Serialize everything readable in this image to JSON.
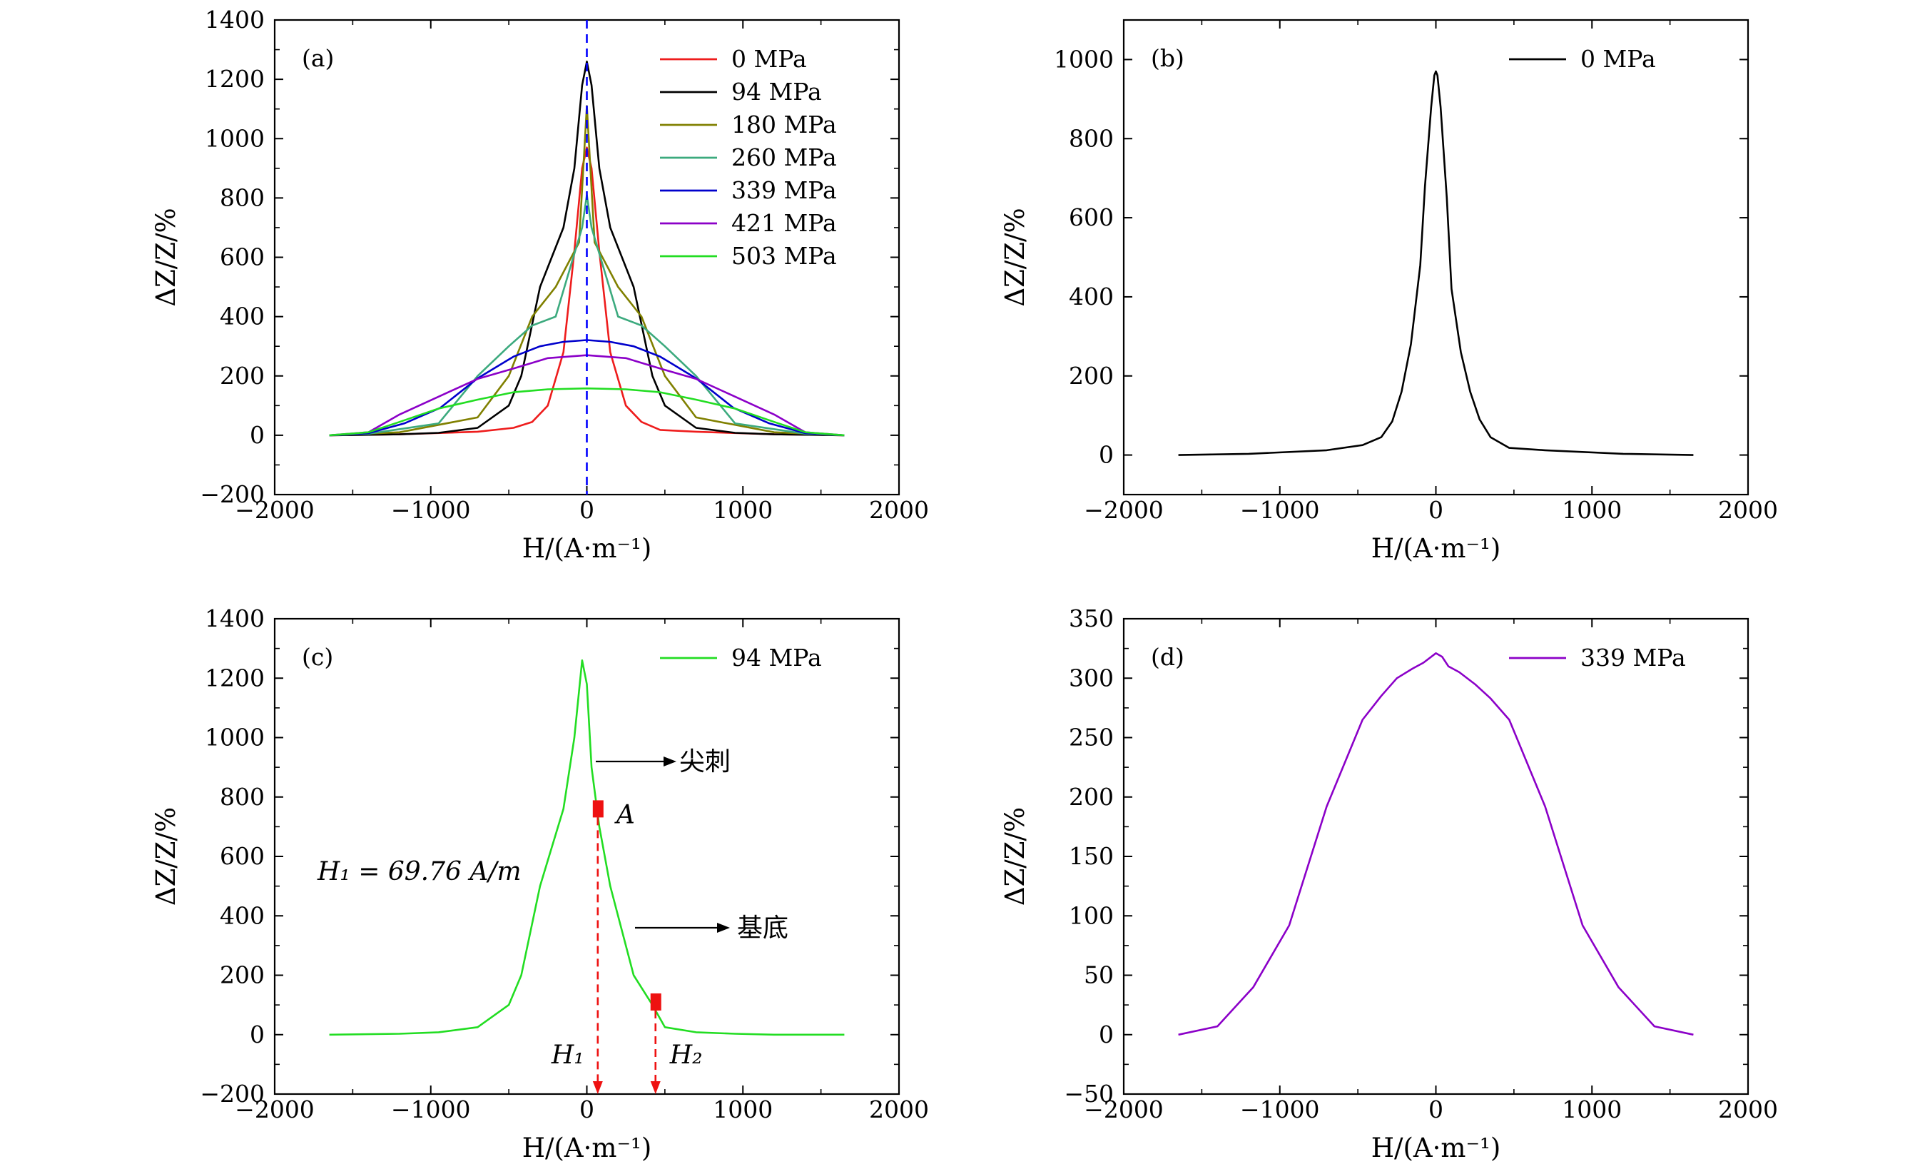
{
  "chart_data": [
    {
      "panel": "(a)",
      "type": "line",
      "xlabel": "H/(A·m⁻¹)",
      "ylabel": "ΔZ/Z/%",
      "xlim": [
        -2000,
        2000
      ],
      "ylim": [
        -200,
        1400
      ],
      "xticks": [
        -2000,
        -1000,
        0,
        1000,
        2000
      ],
      "yticks": [
        -200,
        0,
        200,
        400,
        600,
        800,
        1000,
        1200,
        1400
      ],
      "legend_position": "top-right",
      "vline": {
        "x": 0,
        "color": "#0000ff",
        "style": "dashed"
      },
      "series": [
        {
          "name": "0 MPa",
          "color": "#ee1c1c",
          "x": [
            -1650,
            -1200,
            -700,
            -470,
            -350,
            -250,
            -150,
            -80,
            -30,
            0,
            30,
            80,
            150,
            250,
            350,
            470,
            700,
            1200,
            1650
          ],
          "y": [
            0,
            3,
            12,
            25,
            45,
            100,
            280,
            620,
            900,
            970,
            900,
            620,
            280,
            100,
            45,
            18,
            12,
            3,
            0
          ]
        },
        {
          "name": "94 MPa",
          "color": "#000000",
          "x": [
            -1650,
            -1200,
            -950,
            -700,
            -500,
            -420,
            -300,
            -150,
            -80,
            -30,
            0,
            30,
            80,
            150,
            300,
            420,
            500,
            700,
            950,
            1200,
            1650
          ],
          "y": [
            0,
            3,
            8,
            25,
            100,
            200,
            500,
            700,
            900,
            1180,
            1260,
            1180,
            900,
            700,
            500,
            200,
            100,
            25,
            8,
            3,
            0
          ]
        },
        {
          "name": "180 MPa",
          "color": "#808000",
          "x": [
            -1650,
            -1200,
            -700,
            -500,
            -350,
            -200,
            -50,
            0,
            50,
            200,
            350,
            500,
            700,
            1200,
            1650
          ],
          "y": [
            0,
            10,
            60,
            200,
            400,
            500,
            650,
            1110,
            650,
            500,
            400,
            200,
            60,
            10,
            0
          ]
        },
        {
          "name": "260 MPa",
          "color": "#3caa7e",
          "x": [
            -1650,
            -1400,
            -950,
            -700,
            -500,
            -350,
            -200,
            -30,
            0,
            30,
            200,
            350,
            500,
            700,
            950,
            1400,
            1650
          ],
          "y": [
            0,
            5,
            40,
            200,
            300,
            370,
            400,
            700,
            810,
            700,
            400,
            370,
            300,
            200,
            40,
            5,
            0
          ]
        },
        {
          "name": "339 MPa",
          "color": "#0000cc",
          "x": [
            -1650,
            -1400,
            -1170,
            -940,
            -700,
            -470,
            -300,
            -150,
            0,
            150,
            300,
            470,
            700,
            940,
            1170,
            1400,
            1650
          ],
          "y": [
            0,
            7,
            40,
            92,
            192,
            265,
            300,
            315,
            321,
            315,
            300,
            265,
            192,
            92,
            40,
            7,
            0
          ]
        },
        {
          "name": "421 MPa",
          "color": "#8b00c8",
          "x": [
            -1650,
            -1400,
            -1200,
            -950,
            -700,
            -470,
            -250,
            0,
            250,
            470,
            700,
            950,
            1200,
            1400,
            1650
          ],
          "y": [
            0,
            10,
            70,
            130,
            190,
            225,
            260,
            270,
            260,
            225,
            190,
            130,
            70,
            10,
            0
          ]
        },
        {
          "name": "503 MPa",
          "color": "#22dd22",
          "x": [
            -1650,
            -1400,
            -1200,
            -950,
            -700,
            -470,
            -250,
            0,
            250,
            470,
            700,
            950,
            1200,
            1400,
            1650
          ],
          "y": [
            0,
            10,
            45,
            90,
            120,
            145,
            155,
            158,
            155,
            145,
            120,
            90,
            45,
            10,
            0
          ]
        }
      ]
    },
    {
      "panel": "(b)",
      "type": "line",
      "xlabel": "H/(A·m⁻¹)",
      "ylabel": "ΔZ/Z/%",
      "xlim": [
        -2000,
        2000
      ],
      "ylim": [
        -100,
        1100
      ],
      "xticks": [
        -2000,
        -1000,
        0,
        1000,
        2000
      ],
      "yticks": [
        0,
        200,
        400,
        600,
        800,
        1000
      ],
      "legend_position": "top-right",
      "series": [
        {
          "name": "0 MPa",
          "color": "#000000",
          "x": [
            -1650,
            -1200,
            -700,
            -470,
            -350,
            -280,
            -220,
            -160,
            -100,
            -70,
            -30,
            -10,
            0,
            10,
            30,
            70,
            100,
            160,
            220,
            280,
            350,
            470,
            700,
            1200,
            1650
          ],
          "y": [
            0,
            3,
            12,
            25,
            45,
            85,
            160,
            280,
            480,
            680,
            880,
            960,
            970,
            960,
            880,
            650,
            420,
            260,
            160,
            90,
            45,
            18,
            12,
            3,
            0
          ]
        }
      ]
    },
    {
      "panel": "(c)",
      "type": "line",
      "xlabel": "H/(A·m⁻¹)",
      "ylabel": "ΔZ/Z/%",
      "xlim": [
        -2000,
        2000
      ],
      "ylim": [
        -200,
        1400
      ],
      "xticks": [
        -2000,
        -1000,
        0,
        1000,
        2000
      ],
      "yticks": [
        -200,
        0,
        200,
        400,
        600,
        800,
        1000,
        1200,
        1400
      ],
      "legend_position": "top-right",
      "series": [
        {
          "name": "94 MPa",
          "color": "#22dd22",
          "x": [
            -1650,
            -1200,
            -950,
            -700,
            -500,
            -420,
            -300,
            -150,
            -80,
            -30,
            0,
            30,
            80,
            150,
            300,
            420,
            500,
            700,
            950,
            1200,
            1650
          ],
          "y": [
            0,
            3,
            8,
            25,
            100,
            200,
            500,
            760,
            1000,
            1260,
            1180,
            900,
            700,
            500,
            200,
            100,
            25,
            8,
            3,
            0,
            0
          ]
        }
      ],
      "markers": [
        {
          "label": "A",
          "x": 70,
          "y": 760,
          "color": "#ee1111"
        },
        {
          "label": "",
          "x": 440,
          "y": 110,
          "color": "#ee1111"
        }
      ],
      "annotations": {
        "h1_equation": "H₁ = 69.76 A/m",
        "h1_label": "H₁",
        "h2_label": "H₂",
        "point_label": "A",
        "spike_label": "尖刺",
        "base_label": "基底"
      }
    },
    {
      "panel": "(d)",
      "type": "line",
      "xlabel": "H/(A·m⁻¹)",
      "ylabel": "ΔZ/Z/%",
      "xlim": [
        -2000,
        2000
      ],
      "ylim": [
        -50,
        350
      ],
      "xticks": [
        -2000,
        -1000,
        0,
        1000,
        2000
      ],
      "yticks": [
        -50,
        0,
        50,
        100,
        150,
        200,
        250,
        300,
        350
      ],
      "legend_position": "top-right",
      "series": [
        {
          "name": "339 MPa",
          "color": "#8b00c8",
          "x": [
            -1650,
            -1400,
            -1170,
            -940,
            -700,
            -470,
            -350,
            -250,
            -150,
            -80,
            0,
            40,
            80,
            150,
            250,
            350,
            470,
            700,
            940,
            1170,
            1400,
            1650
          ],
          "y": [
            0,
            7,
            40,
            92,
            192,
            265,
            285,
            300,
            308,
            313,
            321,
            318,
            310,
            305,
            295,
            283,
            265,
            192,
            92,
            40,
            7,
            0
          ]
        }
      ]
    }
  ]
}
